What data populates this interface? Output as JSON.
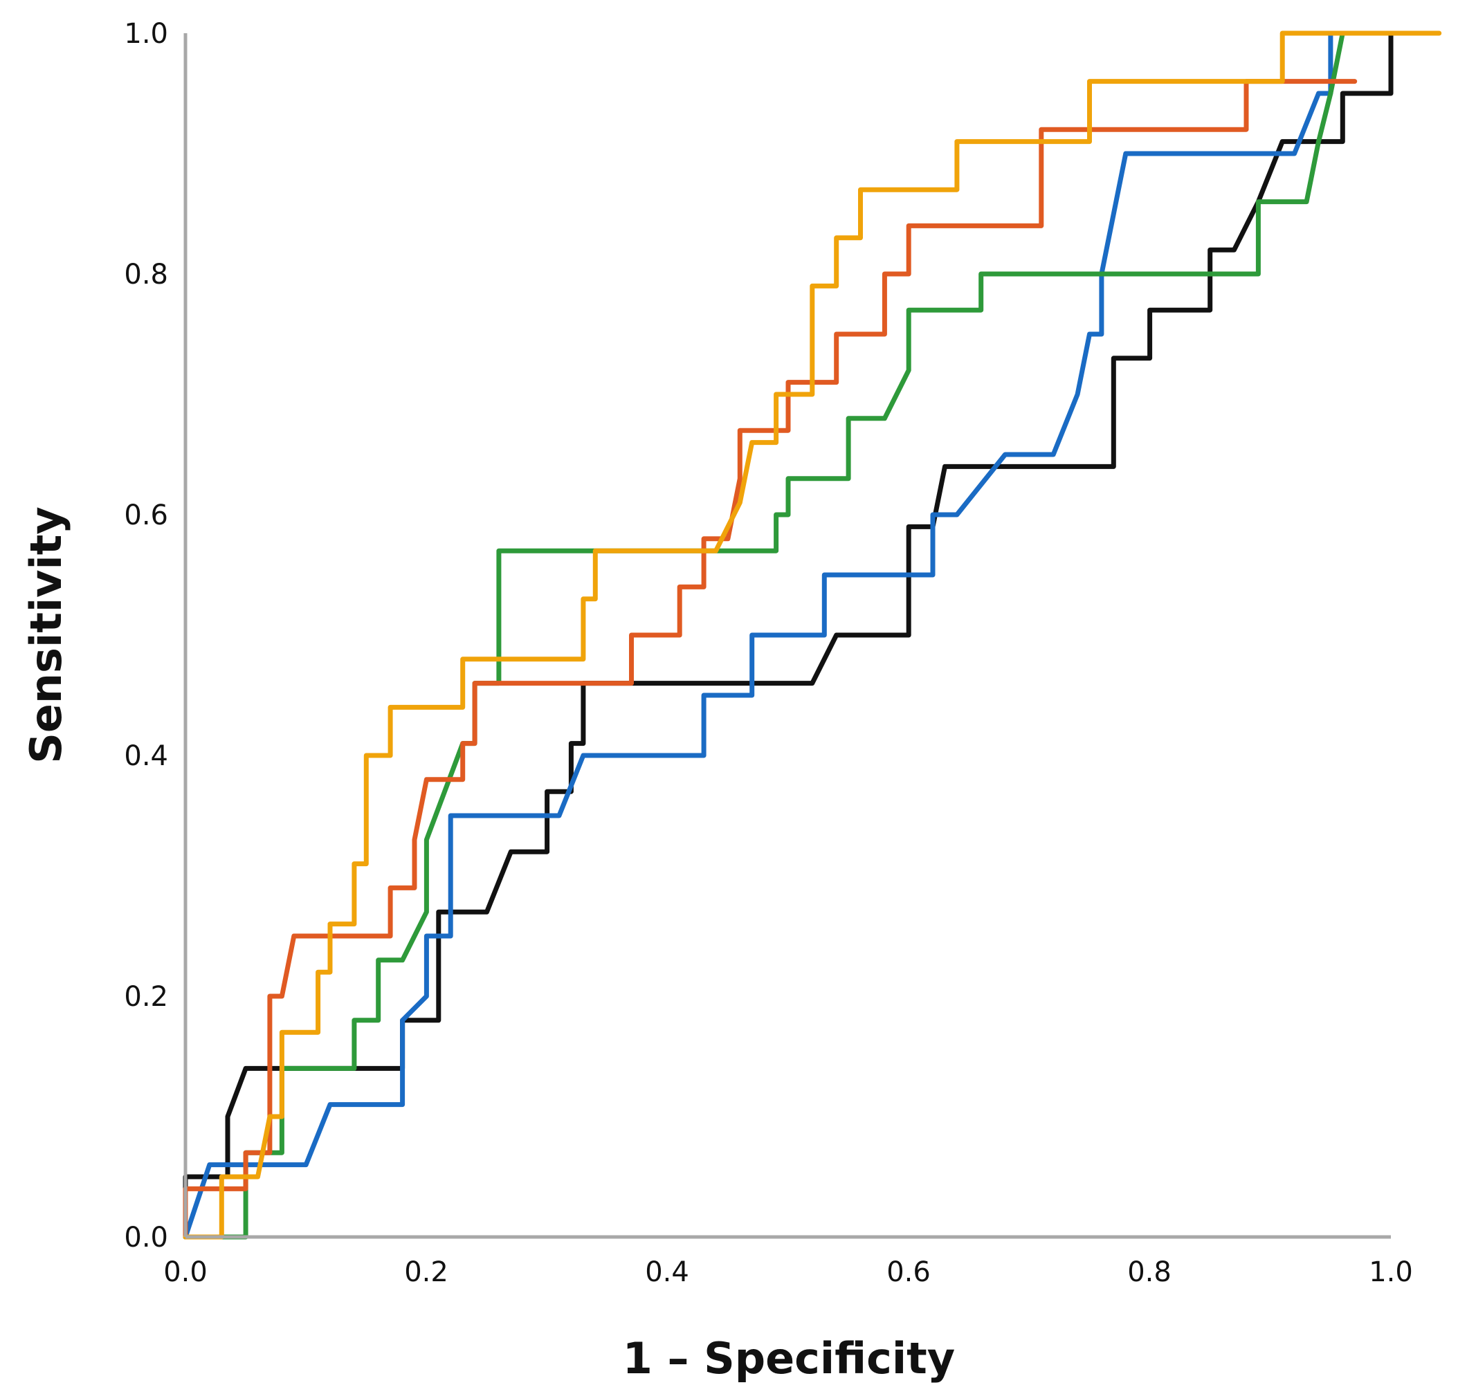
{
  "chart_data": {
    "type": "line",
    "title": "",
    "xlabel": "1 – Specificity",
    "ylabel": "Sensitivity",
    "xlim": [
      0,
      1
    ],
    "ylim": [
      0,
      1
    ],
    "xticks": [
      "0.0",
      "0.2",
      "0.4",
      "0.6",
      "0.8",
      "1.0"
    ],
    "yticks": [
      "0.0",
      "0.2",
      "0.4",
      "0.6",
      "0.8",
      "1.0"
    ],
    "grid": false,
    "legend": "none",
    "series": [
      {
        "name": "black",
        "color": "#111111",
        "points": [
          [
            0.0,
            0.0
          ],
          [
            0.0,
            0.05
          ],
          [
            0.035,
            0.05
          ],
          [
            0.035,
            0.1
          ],
          [
            0.05,
            0.14
          ],
          [
            0.18,
            0.14
          ],
          [
            0.18,
            0.18
          ],
          [
            0.21,
            0.18
          ],
          [
            0.21,
            0.27
          ],
          [
            0.25,
            0.27
          ],
          [
            0.27,
            0.32
          ],
          [
            0.3,
            0.32
          ],
          [
            0.3,
            0.37
          ],
          [
            0.32,
            0.37
          ],
          [
            0.32,
            0.41
          ],
          [
            0.33,
            0.41
          ],
          [
            0.33,
            0.46
          ],
          [
            0.52,
            0.46
          ],
          [
            0.54,
            0.5
          ],
          [
            0.6,
            0.5
          ],
          [
            0.6,
            0.59
          ],
          [
            0.62,
            0.59
          ],
          [
            0.63,
            0.64
          ],
          [
            0.77,
            0.64
          ],
          [
            0.77,
            0.73
          ],
          [
            0.8,
            0.73
          ],
          [
            0.8,
            0.77
          ],
          [
            0.85,
            0.77
          ],
          [
            0.85,
            0.82
          ],
          [
            0.87,
            0.82
          ],
          [
            0.89,
            0.86
          ],
          [
            0.91,
            0.91
          ],
          [
            0.96,
            0.91
          ],
          [
            0.96,
            0.95
          ],
          [
            1.0,
            0.95
          ],
          [
            1.0,
            1.0
          ]
        ]
      },
      {
        "name": "blue",
        "color": "#1a6bc4",
        "points": [
          [
            0.0,
            0.0
          ],
          [
            0.02,
            0.06
          ],
          [
            0.1,
            0.06
          ],
          [
            0.12,
            0.11
          ],
          [
            0.18,
            0.11
          ],
          [
            0.18,
            0.18
          ],
          [
            0.2,
            0.2
          ],
          [
            0.2,
            0.25
          ],
          [
            0.22,
            0.25
          ],
          [
            0.22,
            0.35
          ],
          [
            0.31,
            0.35
          ],
          [
            0.33,
            0.4
          ],
          [
            0.43,
            0.4
          ],
          [
            0.43,
            0.45
          ],
          [
            0.47,
            0.45
          ],
          [
            0.47,
            0.5
          ],
          [
            0.53,
            0.5
          ],
          [
            0.53,
            0.55
          ],
          [
            0.62,
            0.55
          ],
          [
            0.62,
            0.6
          ],
          [
            0.64,
            0.6
          ],
          [
            0.68,
            0.65
          ],
          [
            0.72,
            0.65
          ],
          [
            0.74,
            0.7
          ],
          [
            0.75,
            0.75
          ],
          [
            0.76,
            0.75
          ],
          [
            0.76,
            0.8
          ],
          [
            0.78,
            0.9
          ],
          [
            0.92,
            0.9
          ],
          [
            0.94,
            0.95
          ],
          [
            0.95,
            0.95
          ],
          [
            0.95,
            1.0
          ],
          [
            0.98,
            1.0
          ]
        ]
      },
      {
        "name": "green",
        "color": "#2e9a3a",
        "points": [
          [
            0.0,
            0.0
          ],
          [
            0.05,
            0.0
          ],
          [
            0.05,
            0.07
          ],
          [
            0.08,
            0.07
          ],
          [
            0.08,
            0.14
          ],
          [
            0.14,
            0.14
          ],
          [
            0.14,
            0.18
          ],
          [
            0.16,
            0.18
          ],
          [
            0.16,
            0.23
          ],
          [
            0.18,
            0.23
          ],
          [
            0.2,
            0.27
          ],
          [
            0.2,
            0.33
          ],
          [
            0.23,
            0.41
          ],
          [
            0.24,
            0.41
          ],
          [
            0.24,
            0.46
          ],
          [
            0.26,
            0.46
          ],
          [
            0.26,
            0.57
          ],
          [
            0.49,
            0.57
          ],
          [
            0.49,
            0.6
          ],
          [
            0.5,
            0.6
          ],
          [
            0.5,
            0.63
          ],
          [
            0.55,
            0.63
          ],
          [
            0.55,
            0.68
          ],
          [
            0.58,
            0.68
          ],
          [
            0.6,
            0.72
          ],
          [
            0.6,
            0.77
          ],
          [
            0.66,
            0.77
          ],
          [
            0.66,
            0.8
          ],
          [
            0.89,
            0.8
          ],
          [
            0.89,
            0.86
          ],
          [
            0.93,
            0.86
          ],
          [
            0.94,
            0.91
          ],
          [
            0.95,
            0.95
          ],
          [
            0.96,
            1.0
          ]
        ]
      },
      {
        "name": "red",
        "color": "#e05a22",
        "points": [
          [
            0.0,
            0.0
          ],
          [
            0.0,
            0.04
          ],
          [
            0.05,
            0.04
          ],
          [
            0.05,
            0.07
          ],
          [
            0.07,
            0.07
          ],
          [
            0.07,
            0.2
          ],
          [
            0.08,
            0.2
          ],
          [
            0.09,
            0.25
          ],
          [
            0.17,
            0.25
          ],
          [
            0.17,
            0.29
          ],
          [
            0.19,
            0.29
          ],
          [
            0.19,
            0.33
          ],
          [
            0.2,
            0.38
          ],
          [
            0.23,
            0.38
          ],
          [
            0.23,
            0.41
          ],
          [
            0.24,
            0.41
          ],
          [
            0.24,
            0.46
          ],
          [
            0.37,
            0.46
          ],
          [
            0.37,
            0.5
          ],
          [
            0.41,
            0.5
          ],
          [
            0.41,
            0.54
          ],
          [
            0.43,
            0.54
          ],
          [
            0.43,
            0.58
          ],
          [
            0.45,
            0.58
          ],
          [
            0.46,
            0.63
          ],
          [
            0.46,
            0.67
          ],
          [
            0.5,
            0.67
          ],
          [
            0.5,
            0.71
          ],
          [
            0.54,
            0.71
          ],
          [
            0.54,
            0.75
          ],
          [
            0.58,
            0.75
          ],
          [
            0.58,
            0.8
          ],
          [
            0.6,
            0.8
          ],
          [
            0.6,
            0.84
          ],
          [
            0.71,
            0.84
          ],
          [
            0.71,
            0.92
          ],
          [
            0.88,
            0.92
          ],
          [
            0.88,
            0.96
          ],
          [
            0.97,
            0.96
          ]
        ]
      },
      {
        "name": "orange",
        "color": "#f0a30a",
        "points": [
          [
            0.0,
            0.0
          ],
          [
            0.03,
            0.0
          ],
          [
            0.03,
            0.05
          ],
          [
            0.06,
            0.05
          ],
          [
            0.07,
            0.1
          ],
          [
            0.08,
            0.1
          ],
          [
            0.08,
            0.17
          ],
          [
            0.11,
            0.17
          ],
          [
            0.11,
            0.22
          ],
          [
            0.12,
            0.22
          ],
          [
            0.12,
            0.26
          ],
          [
            0.14,
            0.26
          ],
          [
            0.14,
            0.31
          ],
          [
            0.15,
            0.31
          ],
          [
            0.15,
            0.4
          ],
          [
            0.17,
            0.4
          ],
          [
            0.17,
            0.44
          ],
          [
            0.23,
            0.44
          ],
          [
            0.23,
            0.48
          ],
          [
            0.33,
            0.48
          ],
          [
            0.33,
            0.53
          ],
          [
            0.34,
            0.53
          ],
          [
            0.34,
            0.57
          ],
          [
            0.44,
            0.57
          ],
          [
            0.46,
            0.61
          ],
          [
            0.47,
            0.66
          ],
          [
            0.49,
            0.66
          ],
          [
            0.49,
            0.7
          ],
          [
            0.52,
            0.7
          ],
          [
            0.52,
            0.79
          ],
          [
            0.54,
            0.79
          ],
          [
            0.54,
            0.83
          ],
          [
            0.56,
            0.83
          ],
          [
            0.56,
            0.87
          ],
          [
            0.64,
            0.87
          ],
          [
            0.64,
            0.91
          ],
          [
            0.75,
            0.91
          ],
          [
            0.75,
            0.96
          ],
          [
            0.91,
            0.96
          ],
          [
            0.91,
            1.0
          ],
          [
            1.04,
            1.0
          ]
        ]
      }
    ]
  }
}
